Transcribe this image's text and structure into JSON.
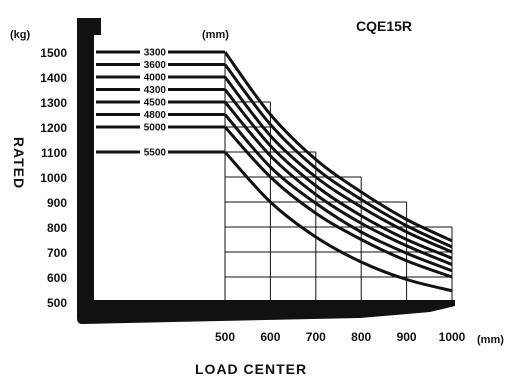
{
  "chart_data": {
    "type": "line",
    "title": "CQE15R",
    "xlabel": "LOAD CENTER",
    "ylabel": "RATED",
    "x_unit": "(mm)",
    "y_unit": "(kg)",
    "curve_unit": "(mm)",
    "xlim": [
      500,
      1000
    ],
    "ylim": [
      500,
      1500
    ],
    "x_ticks": [
      "500",
      "600",
      "700",
      "800",
      "900",
      "1000"
    ],
    "y_ticks": [
      "1500",
      "1400",
      "1300",
      "1200",
      "1100",
      "1000",
      "900",
      "800",
      "700",
      "600",
      "500"
    ],
    "x": [
      500,
      600,
      700,
      800,
      900,
      1000
    ],
    "series": [
      {
        "name": "3300",
        "values": [
          1500,
          1250,
          1070,
          940,
          830,
          745
        ]
      },
      {
        "name": "3600",
        "values": [
          1450,
          1210,
          1035,
          910,
          805,
          720
        ]
      },
      {
        "name": "4000",
        "values": [
          1400,
          1165,
          1000,
          880,
          780,
          700
        ]
      },
      {
        "name": "4300",
        "values": [
          1350,
          1125,
          965,
          845,
          750,
          675
        ]
      },
      {
        "name": "4500",
        "values": [
          1300,
          1085,
          930,
          815,
          725,
          650
        ]
      },
      {
        "name": "4800",
        "values": [
          1250,
          1040,
          895,
          780,
          695,
          625
        ]
      },
      {
        "name": "5000",
        "values": [
          1200,
          1000,
          855,
          750,
          665,
          600
        ]
      },
      {
        "name": "5500",
        "values": [
          1100,
          900,
          760,
          660,
          590,
          545
        ]
      }
    ]
  }
}
